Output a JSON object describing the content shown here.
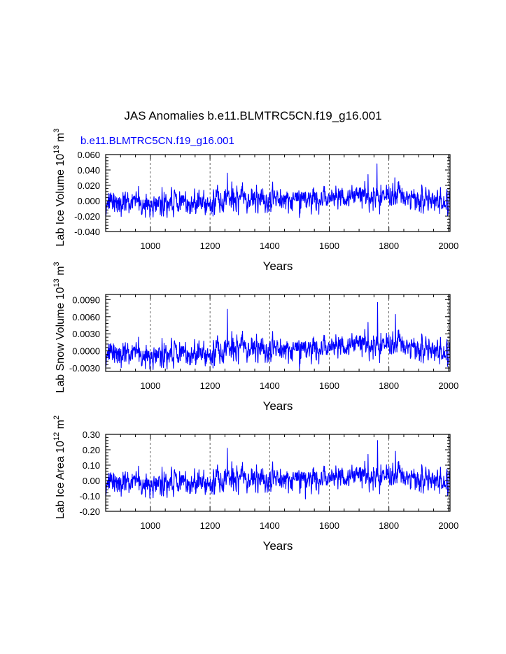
{
  "page": {
    "title": "JAS Anomalies b.e11.BLMTRC5CN.f19_g16.001",
    "case_label": "b.e11.BLMTRC5CN.f19_g16.001"
  },
  "colors": {
    "series": "#0000ff",
    "axis": "#000000",
    "grid": "#000000",
    "case_label": "#0000ff"
  },
  "chart_data": [
    {
      "type": "line",
      "ylabel": "Lab Ice Volume",
      "ylabel_unit": "10^13 m^3",
      "ylabel_exp": "13",
      "ylabel_units": "m",
      "ylabel_units_exp": "3",
      "xlabel": "Years",
      "xlim": [
        850,
        2005
      ],
      "ylim": [
        -0.04,
        0.06
      ],
      "xticks": [
        1000,
        1200,
        1400,
        1600,
        1800,
        2000
      ],
      "xtick_labels": [
        "1000",
        "1200",
        "1400",
        "1600",
        "1800",
        "2000"
      ],
      "yticks": [
        -0.04,
        -0.02,
        0.0,
        0.02,
        0.04,
        0.06
      ],
      "ytick_labels": [
        "-0.040",
        "-0.020",
        "0.000",
        "0.020",
        "0.040",
        "0.060"
      ],
      "grid": "vertical dashed at x ticks",
      "series": [
        {
          "name": "b.e11.BLMTRC5CN.f19_g16.001",
          "x_start": 850,
          "x_end": 2005,
          "baseline_knots": [
            [
              850,
              -0.003
            ],
            [
              1000,
              -0.003
            ],
            [
              1150,
              -0.002
            ],
            [
              1250,
              -0.002
            ],
            [
              1300,
              0.004
            ],
            [
              1400,
              0.001
            ],
            [
              1500,
              0.002
            ],
            [
              1600,
              0.003
            ],
            [
              1700,
              0.007
            ],
            [
              1800,
              0.006
            ],
            [
              1900,
              0.003
            ],
            [
              2005,
              -0.003
            ]
          ],
          "noise_std": 0.008,
          "peaks": [
            [
              1258,
              0.036
            ],
            [
              1760,
              0.048
            ],
            [
              1820,
              0.03
            ]
          ],
          "troughs": [
            [
              1210,
              -0.02
            ],
            [
              1500,
              -0.022
            ]
          ],
          "min": -0.022,
          "max": 0.048
        }
      ]
    },
    {
      "type": "line",
      "ylabel": "Lab Snow Volume",
      "ylabel_unit": "10^13 m^3",
      "ylabel_exp": "13",
      "ylabel_units": "m",
      "ylabel_units_exp": "3",
      "xlabel": "Years",
      "xlim": [
        850,
        2005
      ],
      "ylim": [
        -0.0036,
        0.0099
      ],
      "xticks": [
        1000,
        1200,
        1400,
        1600,
        1800,
        2000
      ],
      "xtick_labels": [
        "1000",
        "1200",
        "1400",
        "1600",
        "1800",
        "2000"
      ],
      "yticks": [
        -0.003,
        0.0,
        0.003,
        0.006,
        0.009
      ],
      "ytick_labels": [
        "-0.0030",
        "0.0000",
        "0.0030",
        "0.0060",
        "0.0090"
      ],
      "grid": "vertical dashed at x ticks",
      "series": [
        {
          "name": "b.e11.BLMTRC5CN.f19_g16.001",
          "x_start": 850,
          "x_end": 2005,
          "baseline_knots": [
            [
              850,
              -0.0005
            ],
            [
              1000,
              -0.0006
            ],
            [
              1150,
              -0.0004
            ],
            [
              1250,
              -0.0004
            ],
            [
              1300,
              0.0008
            ],
            [
              1400,
              0.0002
            ],
            [
              1500,
              0.0003
            ],
            [
              1600,
              0.0006
            ],
            [
              1700,
              0.0013
            ],
            [
              1800,
              0.0011
            ],
            [
              1900,
              0.0006
            ],
            [
              2005,
              -0.0005
            ]
          ],
          "noise_std": 0.0011,
          "peaks": [
            [
              1258,
              0.0073
            ],
            [
              1762,
              0.0085
            ],
            [
              1822,
              0.0064
            ]
          ],
          "troughs": [
            [
              1210,
              -0.003
            ],
            [
              1500,
              -0.0032
            ]
          ],
          "min": -0.0033,
          "max": 0.0085
        }
      ]
    },
    {
      "type": "line",
      "ylabel": "Lab Ice Area",
      "ylabel_unit": "10^12 m^2",
      "ylabel_exp": "12",
      "ylabel_units": "m",
      "ylabel_units_exp": "2",
      "xlabel": "Years",
      "xlim": [
        850,
        2005
      ],
      "ylim": [
        -0.2,
        0.3
      ],
      "xticks": [
        1000,
        1200,
        1400,
        1600,
        1800,
        2000
      ],
      "xtick_labels": [
        "1000",
        "1200",
        "1400",
        "1600",
        "1800",
        "2000"
      ],
      "yticks": [
        -0.2,
        -0.1,
        0.0,
        0.1,
        0.2,
        0.3
      ],
      "ytick_labels": [
        "-0.20",
        "-0.10",
        "0.00",
        "0.10",
        "0.20",
        "0.30"
      ],
      "grid": "vertical dashed at x ticks",
      "series": [
        {
          "name": "b.e11.BLMTRC5CN.f19_g16.001",
          "x_start": 850,
          "x_end": 2005,
          "baseline_knots": [
            [
              850,
              -0.015
            ],
            [
              1000,
              -0.015
            ],
            [
              1150,
              -0.01
            ],
            [
              1250,
              -0.01
            ],
            [
              1300,
              0.02
            ],
            [
              1400,
              0.005
            ],
            [
              1500,
              0.01
            ],
            [
              1600,
              0.015
            ],
            [
              1700,
              0.035
            ],
            [
              1800,
              0.03
            ],
            [
              1900,
              0.015
            ],
            [
              2005,
              -0.015
            ]
          ],
          "noise_std": 0.04,
          "peaks": [
            [
              1258,
              0.21
            ],
            [
              1762,
              0.26
            ],
            [
              1822,
              0.19
            ]
          ],
          "troughs": [
            [
              1210,
              -0.09
            ],
            [
              1520,
              -0.12
            ]
          ],
          "min": -0.12,
          "max": 0.26
        }
      ]
    }
  ]
}
